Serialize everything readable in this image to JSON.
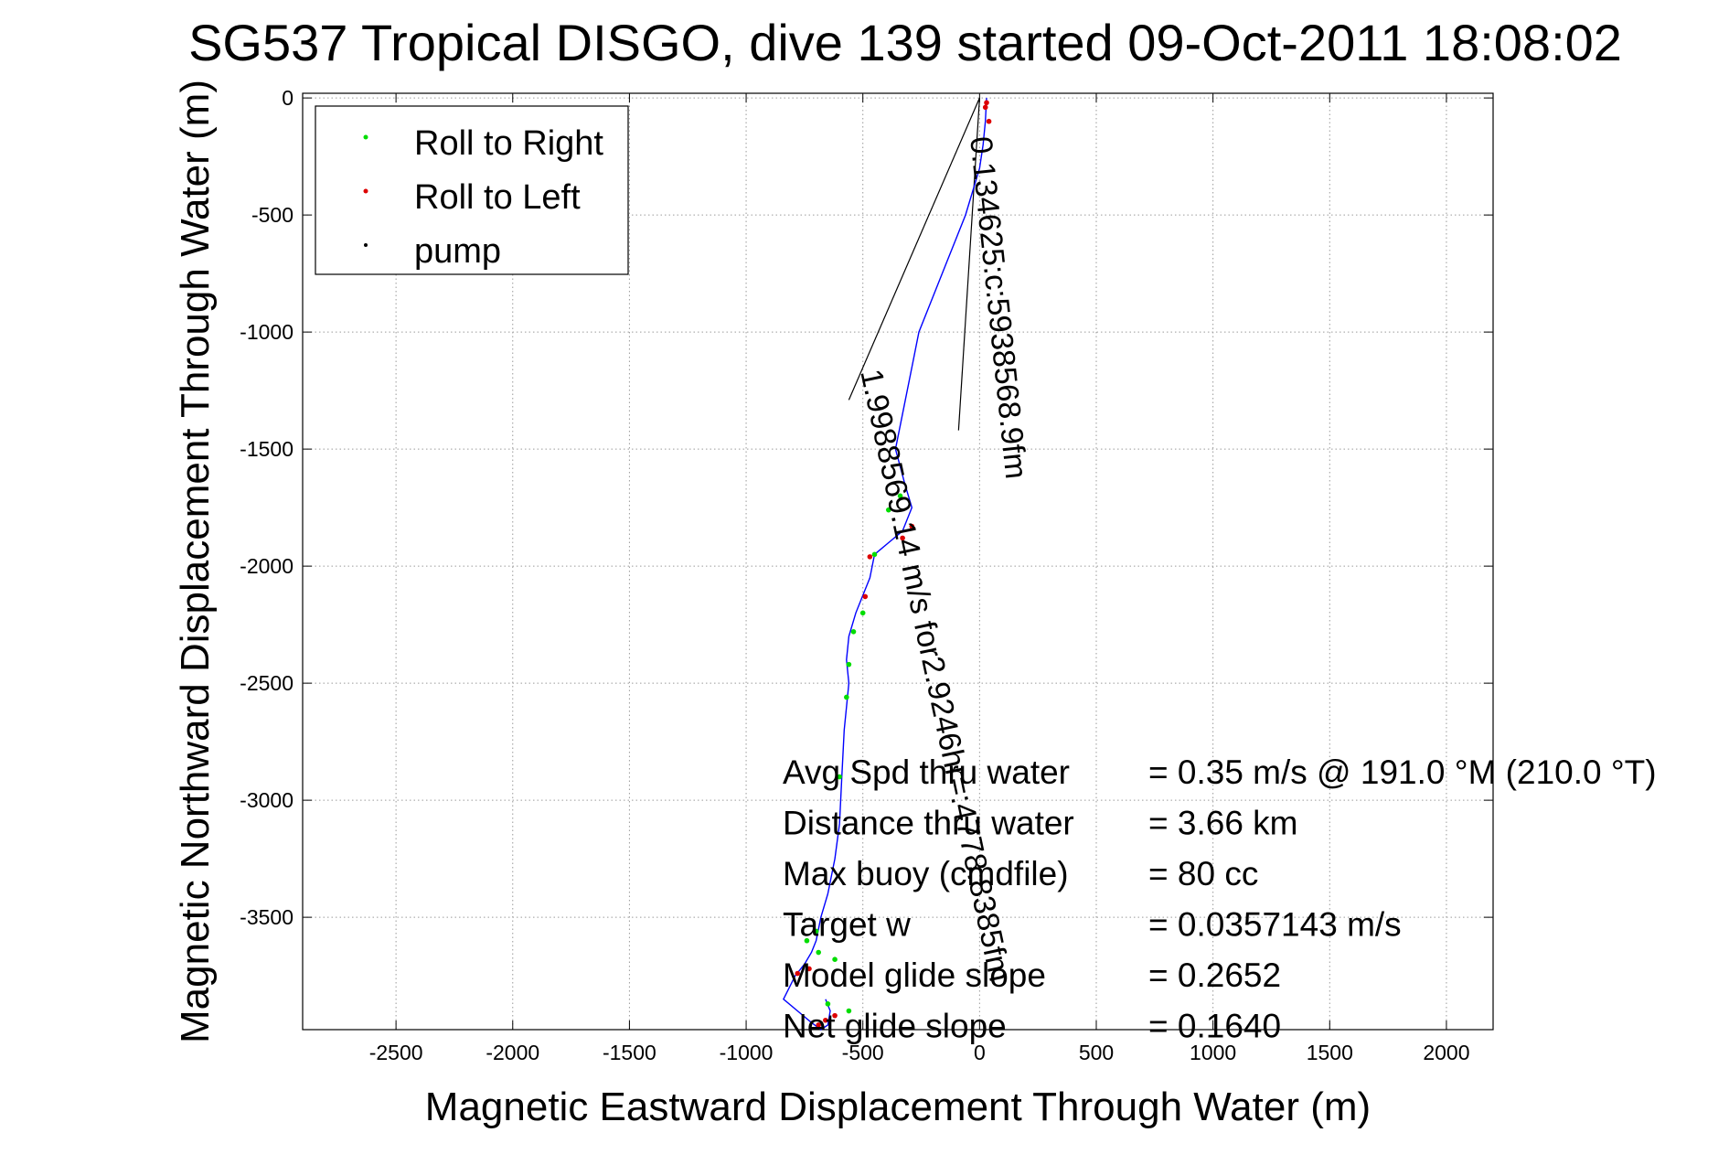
{
  "chart_data": {
    "type": "line",
    "title": "SG537 Tropical DISGO, dive 139 started 09-Oct-2011 18:08:02",
    "xlabel": "Magnetic Eastward Displacement Through Water (m)",
    "ylabel": "Magnetic Northward Displacement Through Water (m)",
    "xlim": [
      -2900,
      2200
    ],
    "ylim": [
      -3980,
      20
    ],
    "xticks": [
      -2500,
      -2000,
      -1500,
      -1000,
      -500,
      0,
      500,
      1000,
      1500,
      2000
    ],
    "yticks": [
      0,
      -500,
      -1000,
      -1500,
      -2000,
      -2500,
      -3000,
      -3500
    ],
    "grid": true,
    "legend_position": "top-left",
    "legend": [
      {
        "label": "Roll to Right",
        "color": "#00dd00"
      },
      {
        "label": "Roll to Left",
        "color": "#dd0000"
      },
      {
        "label": "pump",
        "color": "#000000"
      }
    ],
    "track": {
      "color": "#0000ff",
      "x": [
        30,
        25,
        15,
        0,
        -30,
        -60,
        -100,
        -140,
        -180,
        -220,
        -260,
        -280,
        -300,
        -330,
        -360,
        -320,
        -290,
        -330,
        -390,
        -450,
        -470,
        -530,
        -560,
        -570,
        -560,
        -580,
        -590,
        -600,
        -620,
        -650,
        -680,
        -700,
        -720,
        -750,
        -790,
        -840,
        -780,
        -720,
        -680,
        -650,
        -640,
        -660
      ],
      "y": [
        0,
        -100,
        -200,
        -300,
        -400,
        -500,
        -600,
        -700,
        -800,
        -900,
        -1000,
        -1100,
        -1200,
        -1350,
        -1500,
        -1650,
        -1750,
        -1850,
        -1900,
        -1950,
        -2050,
        -2200,
        -2300,
        -2400,
        -2500,
        -2700,
        -2900,
        -3100,
        -3250,
        -3400,
        -3500,
        -3600,
        -3650,
        -3700,
        -3750,
        -3850,
        -3900,
        -3950,
        -3980,
        -3960,
        -3900,
        -3850
      ]
    },
    "roll_right_points": {
      "x": [
        -340,
        -390,
        -450,
        -540,
        -560,
        -570,
        -600,
        -700,
        -740,
        -690,
        -620,
        -650,
        -560,
        -500
      ],
      "y": [
        -1700,
        -1760,
        -1950,
        -2280,
        -2420,
        -2560,
        -2900,
        -3560,
        -3600,
        -3650,
        -3680,
        -3870,
        -3900,
        -2200
      ],
      "color": "#00dd00"
    },
    "roll_left_points": {
      "x": [
        30,
        25,
        40,
        -290,
        -330,
        -470,
        -490,
        -660,
        -690,
        -730,
        -780,
        -620
      ],
      "y": [
        -20,
        -40,
        -100,
        -1830,
        -1880,
        -1960,
        -2130,
        -3940,
        -3960,
        -3720,
        -3740,
        -3920
      ],
      "color": "#dd0000"
    },
    "vector_lines": [
      {
        "x": [
          0,
          -560
        ],
        "y": [
          0,
          -1290
        ]
      },
      {
        "x": [
          0,
          -90
        ],
        "y": [
          0,
          -1420
        ]
      }
    ],
    "vector_labels": [
      {
        "text": "0.134625:c:5938568.9fm",
        "x": -40,
        "y": -170,
        "rotation": 84
      },
      {
        "text": "1.9988569.14 m/s for2.9246hr=:4778.8385fm",
        "x": -510,
        "y": -1170,
        "rotation": 78
      }
    ],
    "annotations": [
      {
        "label": "Avg Spd thru water",
        "value": "=  0.35 m/s @ 191.0 °M (210.0 °T)"
      },
      {
        "label": "Distance thru water",
        "value": "=  3.66 km"
      },
      {
        "label": "Max buoy (cmdfile)",
        "value": "= 80 cc"
      },
      {
        "label": "Target w",
        "value": "= 0.0357143 m/s"
      },
      {
        "label": "Model glide slope",
        "value": "= 0.2652"
      },
      {
        "label": "Net glide slope",
        "value": "= 0.1640"
      }
    ]
  }
}
